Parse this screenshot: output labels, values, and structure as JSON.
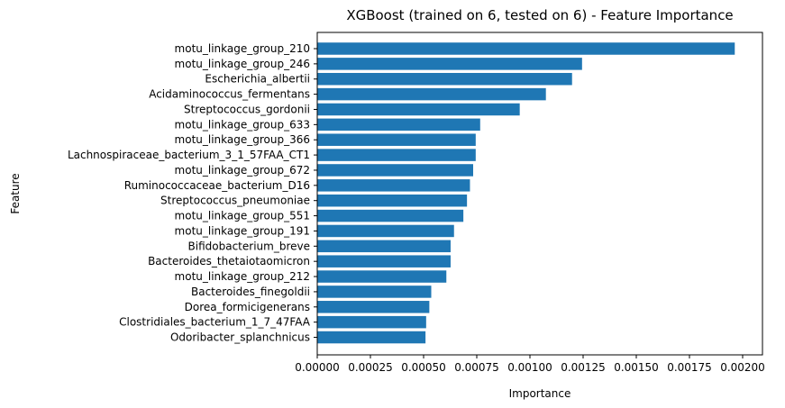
{
  "chart_data": {
    "type": "bar",
    "orientation": "horizontal",
    "title": "XGBoost (trained on 6, tested on 6) -  Feature Importance",
    "xlabel": "Importance",
    "ylabel": "Feature",
    "xlim": [
      0,
      0.00207
    ],
    "xticks": [
      0,
      0.00025,
      0.0005,
      0.00075,
      0.001,
      0.00125,
      0.0015,
      0.00175,
      0.002
    ],
    "xtick_labels": [
      "0.00000",
      "0.00025",
      "0.00050",
      "0.00075",
      "0.00100",
      "0.00125",
      "0.00150",
      "0.00175",
      "0.00200"
    ],
    "grid": false,
    "bar_color": "#1f77b4",
    "categories": [
      "motu_linkage_group_210",
      "motu_linkage_group_246",
      "Escherichia_albertii",
      "Acidaminococcus_fermentans",
      "Streptococcus_gordonii",
      "motu_linkage_group_633",
      "motu_linkage_group_366",
      "Lachnospiraceae_bacterium_3_1_57FAA_CT1",
      "motu_linkage_group_672",
      "Ruminococcaceae_bacterium_D16",
      "Streptococcus_pneumoniae",
      "motu_linkage_group_551",
      "motu_linkage_group_191",
      "Bifidobacterium_breve",
      "Bacteroides_thetaiotaomicron",
      "motu_linkage_group_212",
      "Bacteroides_finegoldii",
      "Dorea_formicigenerans",
      "Clostridiales_bacterium_1_7_47FAA",
      "Odoribacter_splanchnicus"
    ],
    "values": [
      0.001963,
      0.001245,
      0.001198,
      0.001075,
      0.000952,
      0.000766,
      0.000745,
      0.000745,
      0.000733,
      0.000718,
      0.000704,
      0.000687,
      0.000643,
      0.000627,
      0.000627,
      0.000607,
      0.000536,
      0.000527,
      0.000512,
      0.000509
    ]
  }
}
